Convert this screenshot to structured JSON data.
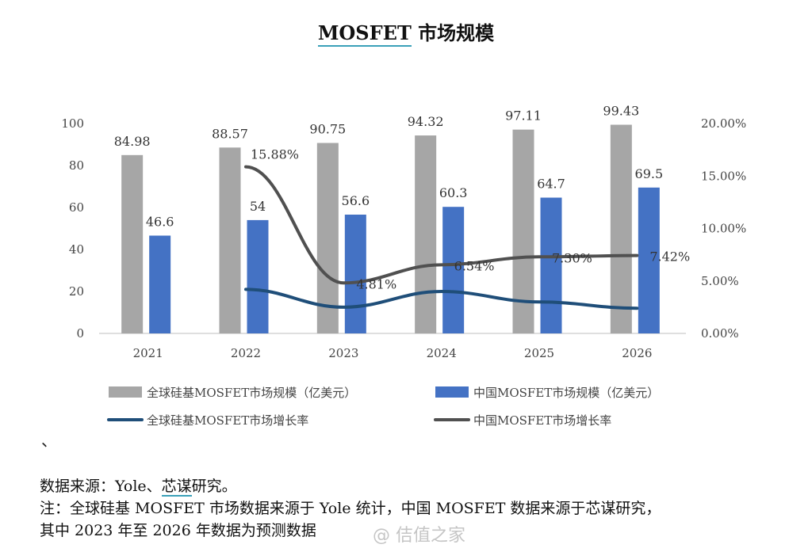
{
  "title_prefix": "MOSFET",
  "title_suffix": " 市场规模",
  "stray_mark": "、",
  "source_prefix": "数据来源：Yole、",
  "source_link": "芯谋",
  "source_suffix": "研究。",
  "note_line1": "注：全球硅基 MOSFET 市场数据来源于 Yole 统计，中国 MOSFET 数据来源于芯谋研究，",
  "note_line2": "其中 2023 年至 2026 年数据为预测数据",
  "watermark": "@ 佶值之家",
  "colors": {
    "global_bar": "#a6a6a6",
    "china_bar": "#4472c4",
    "global_growth": "#1f4e79",
    "china_growth": "#505050"
  },
  "chart_data": {
    "type": "bar",
    "categories": [
      "2021",
      "2022",
      "2023",
      "2024",
      "2025",
      "2026"
    ],
    "series": [
      {
        "name": "全球硅基MOSFET市场规模（亿美元）",
        "kind": "bar",
        "axis": "left",
        "values": [
          84.98,
          88.57,
          90.75,
          94.32,
          97.11,
          99.43
        ],
        "labels": [
          "84.98",
          "88.57",
          "90.75",
          "94.32",
          "97.11",
          "99.43"
        ]
      },
      {
        "name": "中国MOSFET市场规模（亿美元）",
        "kind": "bar",
        "axis": "left",
        "values": [
          46.6,
          54,
          56.6,
          60.3,
          64.7,
          69.5
        ],
        "labels": [
          "46.6",
          "54",
          "56.6",
          "60.3",
          "64.7",
          "69.5"
        ]
      },
      {
        "name": "全球硅基MOSFET市场增长率",
        "kind": "line",
        "axis": "right",
        "values": [
          null,
          4.2,
          2.5,
          4.0,
          3.0,
          2.4
        ],
        "labels": []
      },
      {
        "name": "中国MOSFET市场增长率",
        "kind": "line",
        "axis": "right",
        "values": [
          null,
          15.88,
          4.81,
          6.54,
          7.3,
          7.42
        ],
        "labels": [
          "",
          "15.88%",
          "4.81%",
          "6.54%",
          "7.30%",
          "7.42%"
        ]
      }
    ],
    "y_left": {
      "ylim": [
        0,
        100
      ],
      "ticks": [
        "0",
        "20",
        "40",
        "60",
        "80",
        "100"
      ]
    },
    "y_right": {
      "ylim": [
        0,
        20
      ],
      "ticks": [
        "0.00%",
        "5.00%",
        "10.00%",
        "15.00%",
        "20.00%"
      ]
    },
    "grid": false,
    "legend_position": "bottom"
  }
}
